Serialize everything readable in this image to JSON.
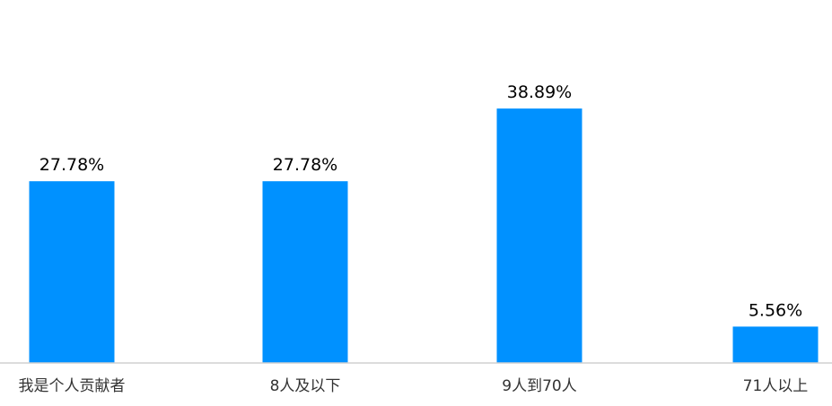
{
  "chart_data": {
    "type": "bar",
    "categories": [
      "我是个人贡献者",
      "8人及以下",
      "9人到70人",
      "71人以上"
    ],
    "values": [
      27.78,
      27.78,
      38.89,
      5.56
    ],
    "value_labels": [
      "27.78%",
      "27.78%",
      "38.89%",
      "5.56%"
    ],
    "unit": "%",
    "ylim": [
      0,
      50
    ],
    "grid": false,
    "legend": "none",
    "colors": {
      "bar": "#0091FF",
      "axis": "#d0d0d0",
      "value_text": "#000000",
      "tick_text": "#333333"
    }
  }
}
